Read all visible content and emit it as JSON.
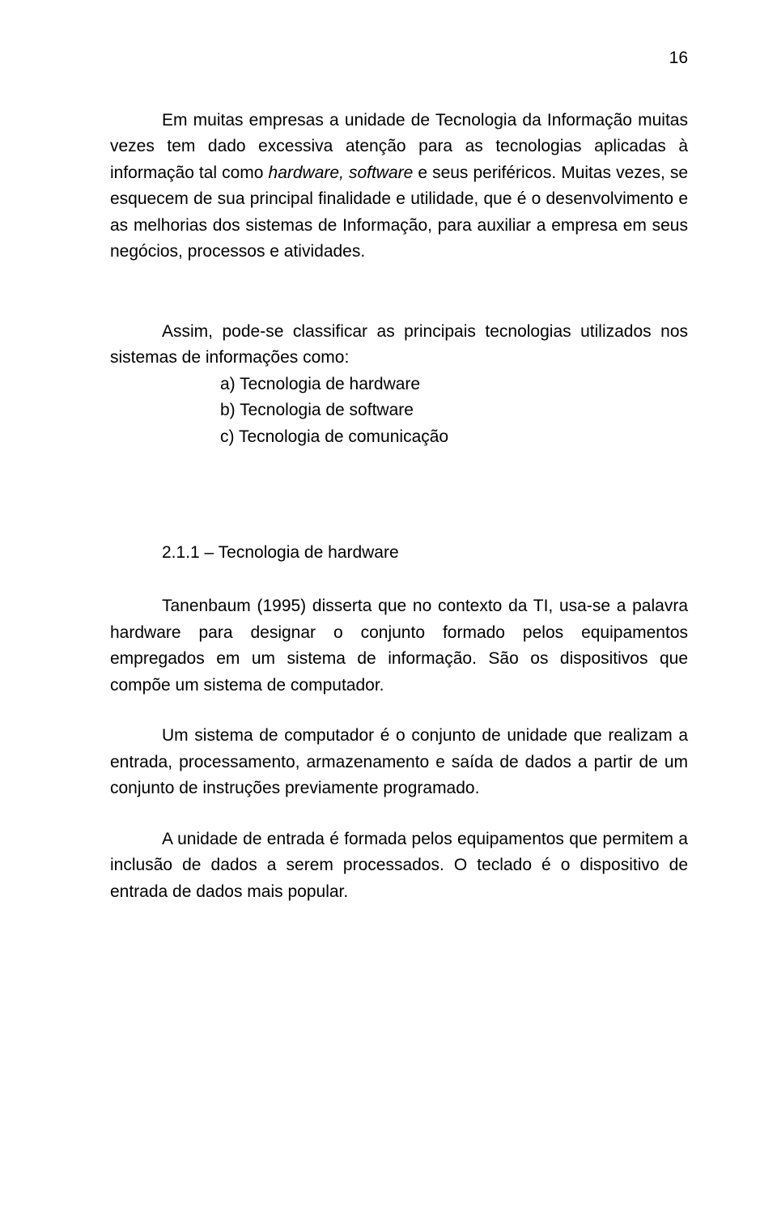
{
  "pageNumber": "16",
  "p1": {
    "a": "Em muitas empresas a unidade de Tecnologia da Informação muitas vezes tem dado excessiva atenção para as tecnologias aplicadas à informação tal como ",
    "b": "hardware, software",
    "c": " e seus periféricos. Muitas vezes, se esquecem de sua principal finalidade e utilidade, que é o desenvolvimento e as melhorias dos sistemas de Informação, para auxiliar a empresa em seus negócios, processos e atividades."
  },
  "list": {
    "intro": "Assim, pode-se classificar as principais tecnologias utilizados nos sistemas de informações como:",
    "a": "a)  Tecnologia de hardware",
    "b": "b)  Tecnologia de software",
    "c": "c)  Tecnologia de comunicação"
  },
  "heading": "2.1.1 – Tecnologia de hardware",
  "p2": "Tanenbaum (1995) disserta que no contexto da TI, usa-se a palavra hardware para designar o conjunto formado pelos equipamentos empregados em um sistema de informação. São os dispositivos que compõe um sistema de computador.",
  "p3": "Um sistema de computador é o conjunto de unidade que realizam a entrada, processamento, armazenamento e saída de dados a partir de um conjunto de instruções previamente programado.",
  "p4": "A unidade de entrada é formada pelos equipamentos que permitem a inclusão de dados a serem processados. O teclado é o dispositivo de entrada de dados mais popular."
}
